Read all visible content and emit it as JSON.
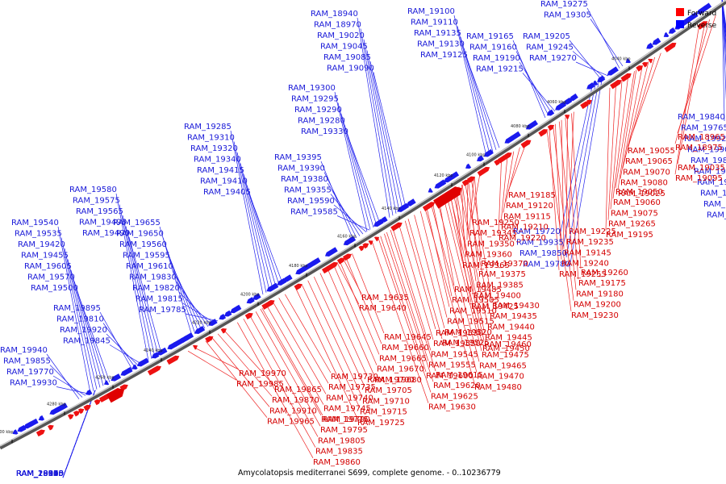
{
  "legend": {
    "forward_label": "Forward",
    "reverse_label": "Reverse",
    "forward_color": "#ff0000",
    "reverse_color": "#0000ff"
  },
  "caption": "Amycolatopsis mediterranei S699, complete genome. - 0..10236779",
  "ticks": [
    "4040 kbp",
    "4060 kbp",
    "4080 kbp",
    "4100 kbp",
    "4120 kbp",
    "4140 kbp",
    "4160 kbp",
    "4180 kbp",
    "4200 kbp",
    "4220 kbp",
    "4240 kbp",
    "4260 kbp",
    "4280 kbp",
    "4300 kbp"
  ],
  "reverse_labels": [
    "RAM_18940",
    "RAM_18970",
    "RAM_19020",
    "RAM_19045",
    "RAM_19085",
    "RAM_19090",
    "RAM_19100",
    "RAM_19110",
    "RAM_19135",
    "RAM_19130",
    "RAM_19125",
    "RAM_19165",
    "RAM_19160",
    "RAM_19190",
    "RAM_19215",
    "RAM_19205",
    "RAM_19245",
    "RAM_19270",
    "RAM_19275",
    "RAM_19305",
    "RAM_19300",
    "RAM_19295",
    "RAM_19290",
    "RAM_19280",
    "RAM_19330",
    "RAM_19285",
    "RAM_19310",
    "RAM_19320",
    "RAM_19340",
    "RAM_19415",
    "RAM_19410",
    "RAM_19405",
    "RAM_19395",
    "RAM_19390",
    "RAM_19380",
    "RAM_19355",
    "RAM_19590",
    "RAM_19585",
    "RAM_19580",
    "RAM_19575",
    "RAM_19565",
    "RAM_19495",
    "RAM_19490",
    "RAM_19540",
    "RAM_19535",
    "RAM_19420",
    "RAM_19455",
    "RAM_19605",
    "RAM_19570",
    "RAM_19500",
    "RAM_19655",
    "RAM_19650",
    "RAM_19560",
    "RAM_19595",
    "RAM_19610",
    "RAM_19830",
    "RAM_19820",
    "RAM_19815",
    "RAM_19785",
    "RAM_19940",
    "RAM_19855",
    "RAM_19770",
    "RAM_19930",
    "RAM_19840",
    "RAM_19765",
    "RAM_19925",
    "RAM_19900",
    "RAM_19825",
    "RAM_19750",
    "RAM_19675",
    "RAM_19945",
    "RAM_19875",
    "RAM_19800",
    "RAM_19720",
    "RAM_19935",
    "RAM_19850",
    "RAM_19780",
    "RAM_19895",
    "RAM_19810",
    "RAM_19920",
    "RAM_19845",
    "RAM_19955",
    "RAM_19880",
    "RAM_19915",
    "RAM_20010",
    "RAM_19950",
    "RAM_19960",
    "RAM_20035",
    "RAM_20015",
    "RAM_18935",
    "RAM_18950",
    "RAM_18995",
    "RAM_19005",
    "RAM_19105",
    "RAM_19140",
    "RAM_19150",
    "RAM_19155",
    "RAM_19170",
    "RAM_19325",
    "RAM_19335"
  ],
  "forward_labels": [
    "RAM_18965",
    "RAM_18975",
    "RAM_19055",
    "RAM_19065",
    "RAM_19070",
    "RAM_19080",
    "RAM_19025",
    "RAM_19035",
    "RAM_19095",
    "RAM_19050",
    "RAM_19060",
    "RAM_19075",
    "RAM_19265",
    "RAM_19195",
    "RAM_19185",
    "RAM_19120",
    "RAM_19115",
    "RAM_19210",
    "RAM_19220",
    "RAM_19225",
    "RAM_19235",
    "RAM_19145",
    "RAM_19240",
    "RAM_19255",
    "RAM_19260",
    "RAM_19175",
    "RAM_19180",
    "RAM_19200",
    "RAM_19230",
    "RAM_19250",
    "RAM_19345",
    "RAM_19350",
    "RAM_19360",
    "RAM_19365",
    "RAM_19370",
    "RAM_19375",
    "RAM_19385",
    "RAM_19400",
    "RAM_19425",
    "RAM_19430",
    "RAM_19435",
    "RAM_19440",
    "RAM_19445",
    "RAM_19450",
    "RAM_19460",
    "RAM_19475",
    "RAM_19465",
    "RAM_19470",
    "RAM_19480",
    "RAM_19485",
    "RAM_19505",
    "RAM_19510",
    "RAM_19515",
    "RAM_19520",
    "RAM_19525",
    "RAM_19530",
    "RAM_19550",
    "RAM_19545",
    "RAM_19555",
    "RAM_19600",
    "RAM_19615",
    "RAM_19620",
    "RAM_19625",
    "RAM_19630",
    "RAM_19635",
    "RAM_19640",
    "RAM_19645",
    "RAM_19660",
    "RAM_19665",
    "RAM_19670",
    "RAM_19680",
    "RAM_19700",
    "RAM_19705",
    "RAM_19710",
    "RAM_19715",
    "RAM_19725",
    "RAM_19730",
    "RAM_19735",
    "RAM_19740",
    "RAM_19745",
    "RAM_19775",
    "RAM_19790",
    "RAM_19795",
    "RAM_19805",
    "RAM_19835",
    "RAM_19860",
    "RAM_19865",
    "RAM_19870",
    "RAM_19910",
    "RAM_19965",
    "RAM_19970",
    "RAM_19985"
  ]
}
